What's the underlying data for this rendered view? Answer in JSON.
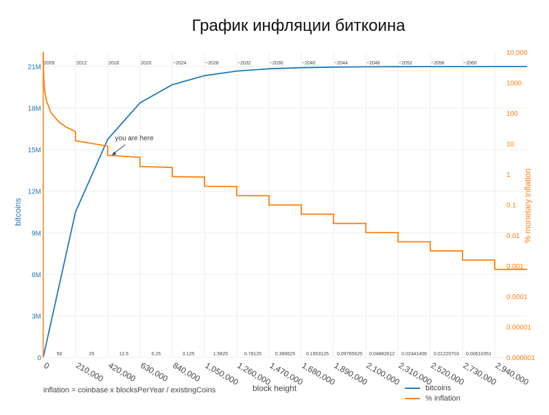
{
  "chart_data": {
    "type": "line",
    "title": "График инфляции биткоина",
    "xlabel": "block height",
    "ylabel_left": "bitcoins",
    "ylabel_right": "% monetary inflation",
    "xlim": [
      0,
      3150000
    ],
    "ylim_left": [
      0,
      21000000
    ],
    "ylim_right": [
      1e-06,
      10000
    ],
    "y_right_scale": "log",
    "x_ticks": [
      0,
      210000,
      420000,
      630000,
      840000,
      1050000,
      1260000,
      1470000,
      1680000,
      1890000,
      2100000,
      2310000,
      2520000,
      2730000,
      2940000
    ],
    "x_tick_labels": [
      "0",
      "210,000",
      "420,000",
      "630,000",
      "840,000",
      "1,050,000",
      "1,260,000",
      "1,470,000",
      "1,680,000",
      "1,890,000",
      "2,100,000",
      "2,310,000",
      "2,520,000",
      "2,730,000",
      "2,940,000"
    ],
    "y_left_ticks": [
      0,
      3000000,
      6000000,
      9000000,
      12000000,
      15000000,
      18000000,
      21000000
    ],
    "y_left_tick_labels": [
      "0",
      "3M",
      "6M",
      "9M",
      "12M",
      "15M",
      "18M",
      "21M"
    ],
    "y_right_ticks": [
      1e-06,
      1e-05,
      0.0001,
      0.001,
      0.01,
      0.1,
      1,
      10,
      100,
      1000,
      10000
    ],
    "y_right_tick_labels": [
      "0.000001",
      "0.00001",
      "0.0001",
      "0.001",
      "0.01",
      "0.1",
      "1",
      "10",
      "100",
      "1000",
      "10,000"
    ],
    "year_labels": [
      "2009",
      "2012",
      "2016",
      "2020",
      "~2024",
      "~2028",
      "~2032",
      "~2036",
      "~2040",
      "~2044",
      "~2048",
      "~2052",
      "~2056",
      "~2060"
    ],
    "reward_labels": [
      "50",
      "25",
      "12.5",
      "6.25",
      "3.125",
      "1.5625",
      "0.78125",
      "0.390625",
      "0.1953125",
      "0.09765625",
      "0.04882812",
      "0.02441406",
      "0.01220703",
      "0.00610351"
    ],
    "annotation": {
      "text": "you are here",
      "x": 445000,
      "y": 4.1
    },
    "series": [
      {
        "name": "bitcoins",
        "color": "#1f77b4",
        "axis": "left",
        "x": [
          0,
          210000,
          420000,
          630000,
          840000,
          1050000,
          1260000,
          1470000,
          1680000,
          1890000,
          2100000,
          2310000,
          2520000,
          2730000,
          2940000,
          3150000
        ],
        "y": [
          0,
          10500000,
          15750000,
          18375000,
          19687500,
          20343750,
          20671875,
          20835938,
          20917969,
          20958984,
          20979492,
          20989746,
          20994873,
          20997437,
          20998718,
          20999359
        ]
      },
      {
        "name": "% inflation",
        "color": "#ff7f0e",
        "axis": "right",
        "x": [
          0,
          500,
          1000,
          2000,
          5000,
          10000,
          20000,
          50000,
          100000,
          150000,
          210000,
          210000,
          420000,
          420000,
          630000,
          630000,
          840000,
          840000,
          1050000,
          1050000,
          1260000,
          1260000,
          1470000,
          1470000,
          1680000,
          1680000,
          1890000,
          1890000,
          2100000,
          2100000,
          2310000,
          2310000,
          2520000,
          2520000,
          2730000,
          2730000,
          2940000,
          2940000,
          3150000
        ],
        "y": [
          10000,
          10000,
          5256,
          2628,
          1051,
          526,
          263,
          105,
          52.6,
          35,
          25,
          12.51,
          8.34,
          4.17,
          3.58,
          1.788,
          1.669,
          0.834,
          0.807,
          0.404,
          0.397,
          0.1986,
          0.1972,
          0.0986,
          0.0983,
          0.0491,
          0.049,
          0.02454,
          0.02452,
          0.01227,
          0.01226,
          0.00613,
          0.00613,
          0.003066,
          0.003066,
          0.001533,
          0.001533,
          0.000766,
          0.000766
        ]
      }
    ]
  },
  "footnote": "inflation = coinbase x blocksPerYear / existingCoins"
}
